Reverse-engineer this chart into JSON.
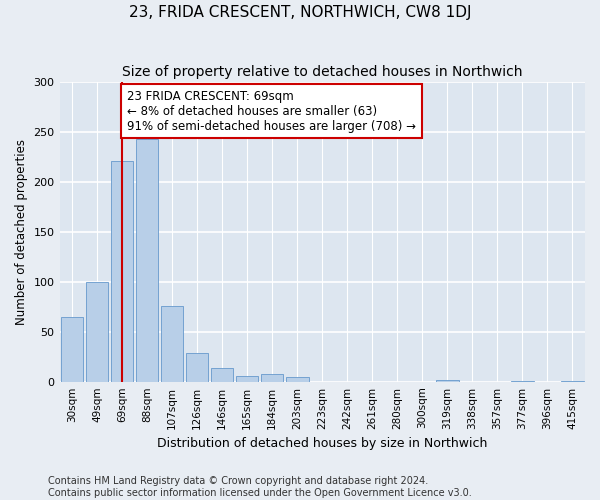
{
  "title": "23, FRIDA CRESCENT, NORTHWICH, CW8 1DJ",
  "subtitle": "Size of property relative to detached houses in Northwich",
  "xlabel": "Distribution of detached houses by size in Northwich",
  "ylabel": "Number of detached properties",
  "categories": [
    "30sqm",
    "49sqm",
    "69sqm",
    "88sqm",
    "107sqm",
    "126sqm",
    "146sqm",
    "165sqm",
    "184sqm",
    "203sqm",
    "223sqm",
    "242sqm",
    "261sqm",
    "280sqm",
    "300sqm",
    "319sqm",
    "338sqm",
    "357sqm",
    "377sqm",
    "396sqm",
    "415sqm"
  ],
  "values": [
    65,
    100,
    221,
    243,
    76,
    29,
    14,
    6,
    8,
    5,
    0,
    0,
    0,
    0,
    0,
    2,
    0,
    0,
    1,
    0,
    1
  ],
  "bar_color": "#b8cfe8",
  "bar_edge_color": "#6699cc",
  "vline_color": "#cc0000",
  "annotation_title": "23 FRIDA CRESCENT: 69sqm",
  "annotation_line1": "← 8% of detached houses are smaller (63)",
  "annotation_line2": "91% of semi-detached houses are larger (708) →",
  "annotation_box_facecolor": "#ffffff",
  "annotation_box_edgecolor": "#cc0000",
  "background_color": "#dde6f0",
  "fig_background_color": "#e8edf3",
  "grid_color": "#ffffff",
  "footer1": "Contains HM Land Registry data © Crown copyright and database right 2024.",
  "footer2": "Contains public sector information licensed under the Open Government Licence v3.0.",
  "ylim": [
    0,
    300
  ],
  "yticks": [
    0,
    50,
    100,
    150,
    200,
    250,
    300
  ]
}
